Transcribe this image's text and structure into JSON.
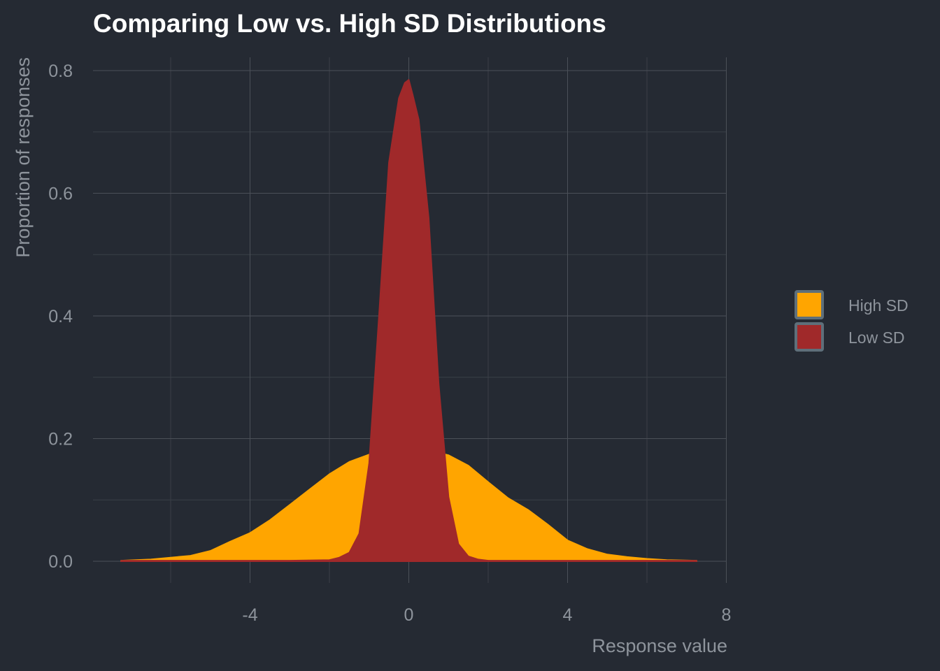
{
  "chart_data": {
    "type": "area",
    "title": "Comparing Low vs. High SD Distributions",
    "xlabel": "Response value",
    "ylabel": "Proportion of responses",
    "xlim": [
      -7.5,
      8.0
    ],
    "ylim": [
      0,
      0.8
    ],
    "x_ticks": [
      -4,
      0,
      4,
      8
    ],
    "x_tick_labels": [
      "-4",
      "0",
      "4",
      "8"
    ],
    "y_ticks": [
      0,
      0.2,
      0.4,
      0.6,
      0.8
    ],
    "y_tick_labels": [
      "0.0",
      "0.2",
      "0.4",
      "0.6",
      "0.8"
    ],
    "grid": true,
    "legend_position": "right",
    "series": [
      {
        "name": "High SD",
        "color": "#ffa500",
        "x": [
          -7.25,
          -6.5,
          -6,
          -5.5,
          -5,
          -4.5,
          -4,
          -3.5,
          -3,
          -2.5,
          -2,
          -1.5,
          -1,
          -0.5,
          0,
          0.5,
          1,
          1.5,
          2,
          2.5,
          3,
          3.5,
          4,
          4.5,
          5,
          5.5,
          6,
          6.5,
          7.25
        ],
        "values": [
          0.001,
          0.003,
          0.006,
          0.009,
          0.017,
          0.032,
          0.046,
          0.067,
          0.092,
          0.117,
          0.142,
          0.162,
          0.174,
          0.18,
          0.182,
          0.18,
          0.173,
          0.156,
          0.129,
          0.103,
          0.084,
          0.06,
          0.034,
          0.02,
          0.011,
          0.007,
          0.004,
          0.002,
          0.001
        ]
      },
      {
        "name": "Low SD",
        "color": "#a0292a",
        "x": [
          -7.25,
          -3,
          -2,
          -1.75,
          -1.5,
          -1.25,
          -1,
          -0.75,
          -0.5,
          -0.25,
          -0.1,
          0,
          0.1,
          0.25,
          0.5,
          0.75,
          1,
          1.25,
          1.5,
          1.75,
          2,
          3,
          7.25
        ],
        "values": [
          0.001,
          0.001,
          0.002,
          0.006,
          0.014,
          0.045,
          0.16,
          0.4,
          0.65,
          0.755,
          0.78,
          0.785,
          0.76,
          0.72,
          0.56,
          0.29,
          0.105,
          0.028,
          0.008,
          0.003,
          0.001,
          0.001,
          0.001
        ]
      }
    ]
  }
}
